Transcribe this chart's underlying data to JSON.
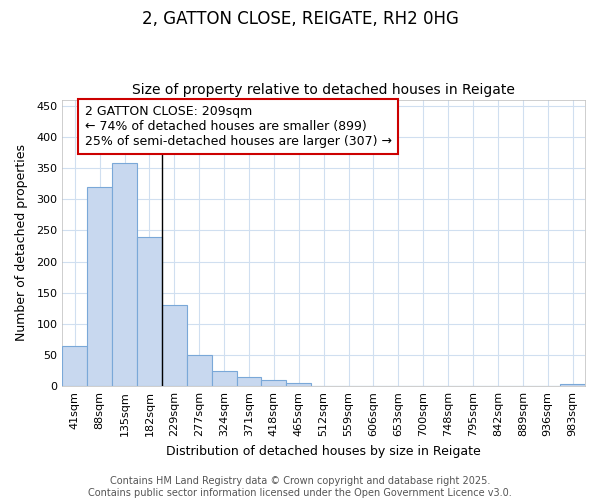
{
  "title_line1": "2, GATTON CLOSE, REIGATE, RH2 0HG",
  "title_line2": "Size of property relative to detached houses in Reigate",
  "xlabel": "Distribution of detached houses by size in Reigate",
  "ylabel": "Number of detached properties",
  "categories": [
    "41sqm",
    "88sqm",
    "135sqm",
    "182sqm",
    "229sqm",
    "277sqm",
    "324sqm",
    "371sqm",
    "418sqm",
    "465sqm",
    "512sqm",
    "559sqm",
    "606sqm",
    "653sqm",
    "700sqm",
    "748sqm",
    "795sqm",
    "842sqm",
    "889sqm",
    "936sqm",
    "983sqm"
  ],
  "values": [
    65,
    320,
    358,
    240,
    130,
    50,
    25,
    15,
    10,
    5,
    0,
    0,
    0,
    0,
    0,
    0,
    0,
    0,
    0,
    0,
    3
  ],
  "bar_color": "#c8d8ef",
  "bar_edge_color": "#7aa8d8",
  "background_color": "#ffffff",
  "grid_color": "#d0dff0",
  "annotation_text": "2 GATTON CLOSE: 209sqm\n← 74% of detached houses are smaller (899)\n25% of semi-detached houses are larger (307) →",
  "annotation_box_color": "#cc0000",
  "vline_x": 3.5,
  "ylim": [
    0,
    460
  ],
  "yticks": [
    0,
    50,
    100,
    150,
    200,
    250,
    300,
    350,
    400,
    450
  ],
  "footer_line1": "Contains HM Land Registry data © Crown copyright and database right 2025.",
  "footer_line2": "Contains public sector information licensed under the Open Government Licence v3.0.",
  "title_fontsize": 12,
  "subtitle_fontsize": 10,
  "axis_label_fontsize": 9,
  "tick_fontsize": 8,
  "annotation_fontsize": 9,
  "footer_fontsize": 7
}
